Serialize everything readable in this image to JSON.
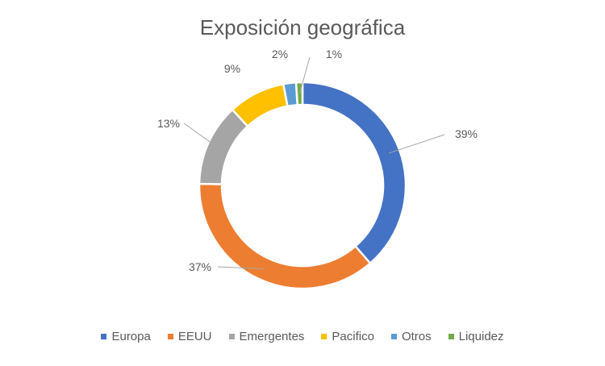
{
  "chart_data": {
    "type": "pie",
    "title": "Exposición geográfica",
    "categories": [
      "Europa",
      "EEUU",
      "Emergentes",
      "Pacifico",
      "Otros",
      "Liquidez"
    ],
    "values": [
      39,
      37,
      13,
      9,
      2,
      1
    ],
    "data_labels": [
      "39%",
      "37%",
      "13%",
      "9%",
      "2%",
      "1%"
    ],
    "colors": [
      "#4472C4",
      "#ED7D31",
      "#A5A5A5",
      "#FFC000",
      "#5B9BD5",
      "#70AD47"
    ],
    "variant": "doughnut",
    "legend_position": "bottom"
  }
}
